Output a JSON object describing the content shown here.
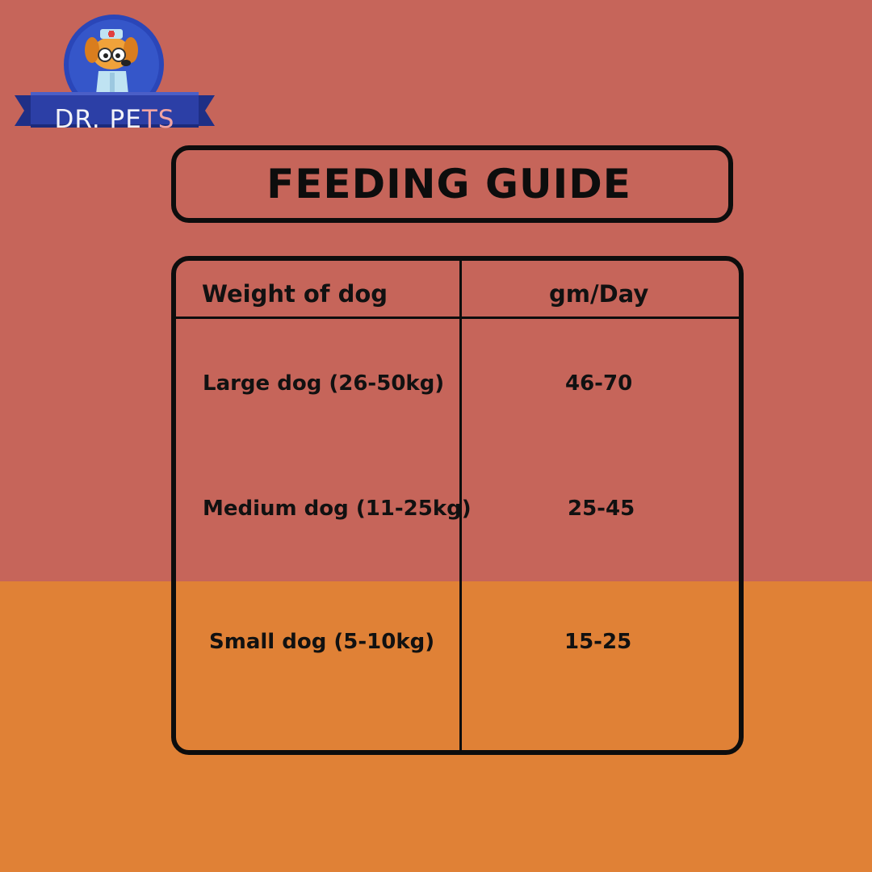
{
  "brand": {
    "name_main": "DR. PE",
    "name_accent": "TS"
  },
  "title": "FEEDING GUIDE",
  "table": {
    "headers": [
      "Weight of dog",
      "gm/Day"
    ],
    "rows": [
      {
        "weight": "Large dog (26-50kg)",
        "amount": "46-70"
      },
      {
        "weight": "Medium dog (11-25kg)",
        "amount": "25-45"
      },
      {
        "weight": "Small dog (5-10kg)",
        "amount": "15-25"
      }
    ]
  },
  "colors": {
    "background_top": "#c6655a",
    "background_bottom": "#e08136",
    "border": "#0d0d0d",
    "logo_ribbon": "#2c3fa6",
    "logo_circle": "#2a46b8"
  }
}
